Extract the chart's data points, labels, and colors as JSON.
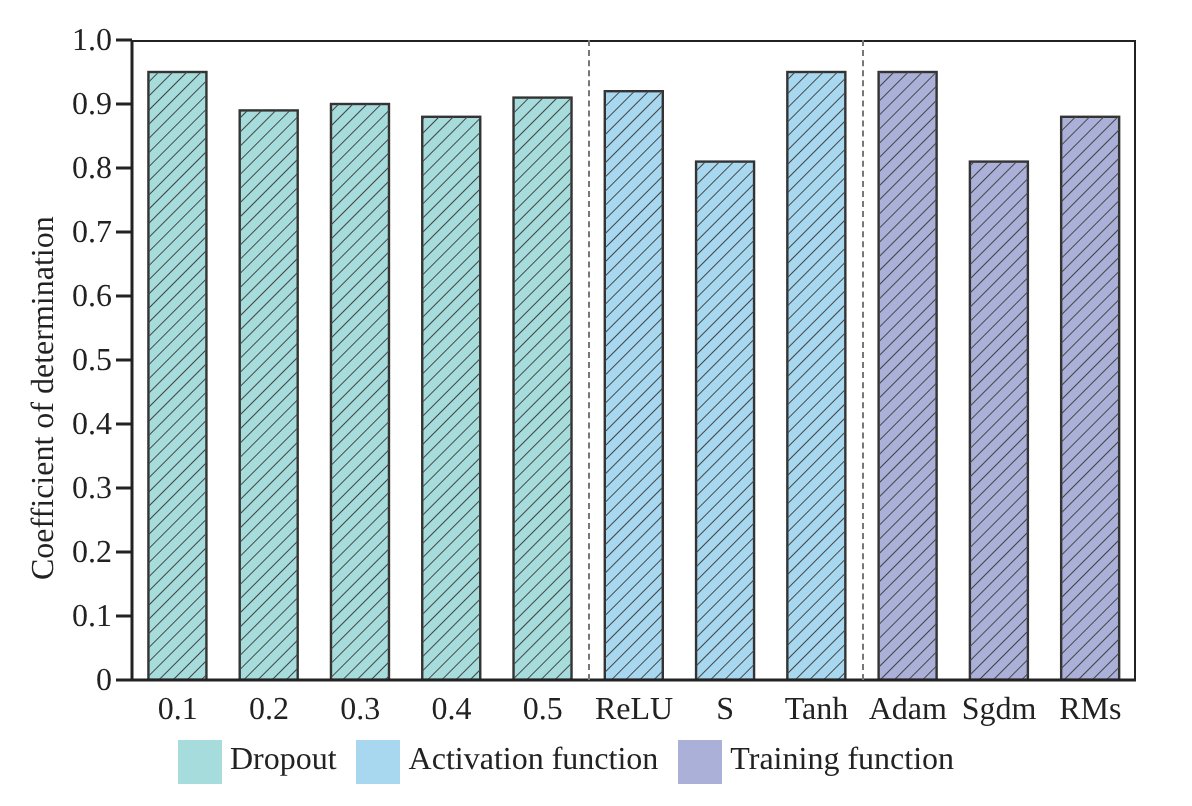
{
  "chart_data": {
    "type": "bar",
    "ylabel": "Coefficient of determination",
    "categories": [
      "0.1",
      "0.2",
      "0.3",
      "0.4",
      "0.5",
      "ReLU",
      "S",
      "Tanh",
      "Adam",
      "Sgdm",
      "RMs"
    ],
    "series": [
      {
        "name": "Dropout",
        "color": "#a6dcdc",
        "values": [
          0.95,
          0.89,
          0.9,
          0.88,
          0.91,
          null,
          null,
          null,
          null,
          null,
          null
        ]
      },
      {
        "name": "Activation function",
        "color": "#a8d8f0",
        "values": [
          null,
          null,
          null,
          null,
          null,
          0.92,
          0.81,
          0.95,
          null,
          null,
          null
        ]
      },
      {
        "name": "Training function",
        "color": "#aab0d8",
        "values": [
          null,
          null,
          null,
          null,
          null,
          null,
          null,
          null,
          0.95,
          0.81,
          0.88
        ]
      }
    ],
    "ylim": [
      0,
      1
    ],
    "yticks": [
      0,
      0.1,
      0.2,
      0.3,
      0.4,
      0.5,
      0.6,
      0.7,
      0.8,
      0.9,
      {
        "value": 1,
        "label": "1.0"
      }
    ],
    "grid": false,
    "legend": "bottom"
  }
}
